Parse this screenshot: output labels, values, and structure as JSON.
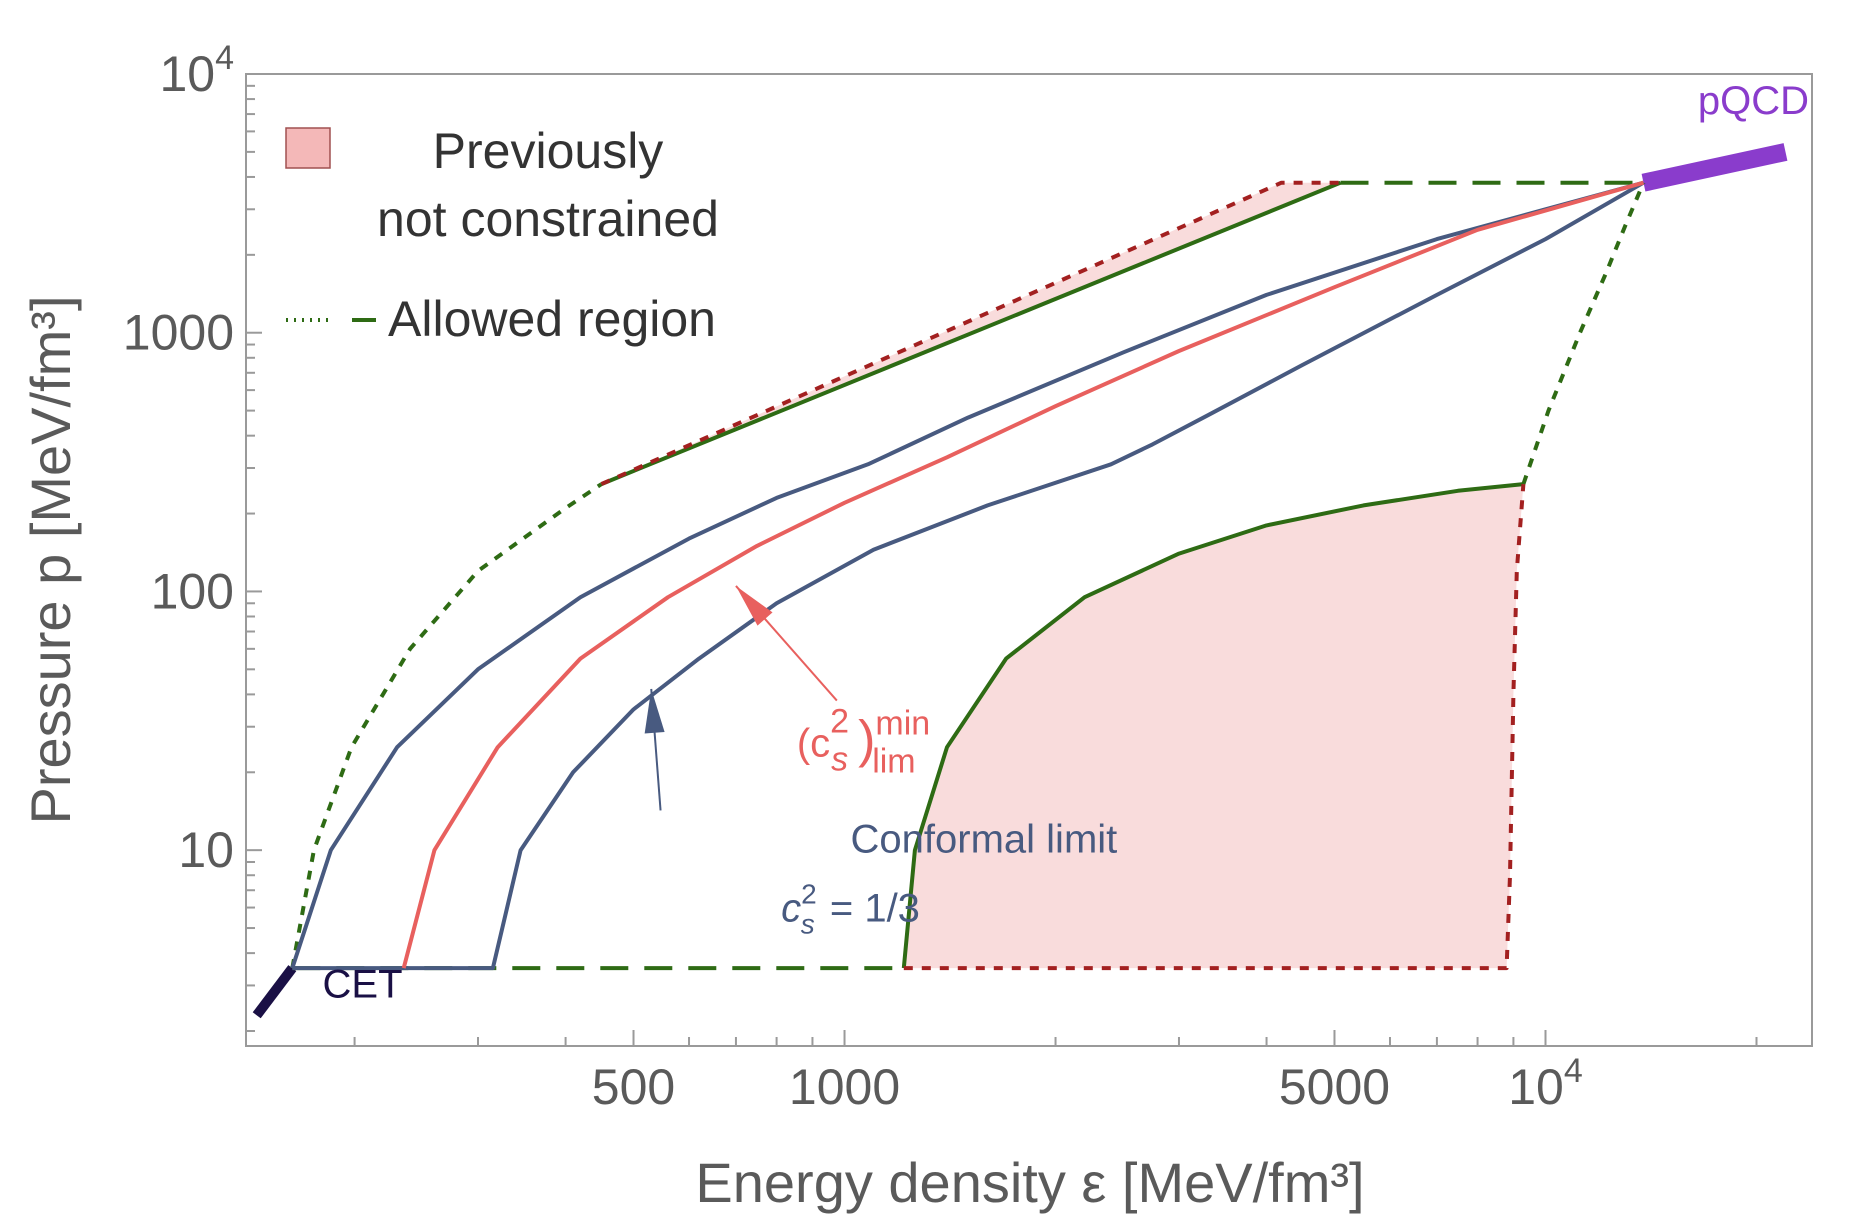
{
  "chart_data": {
    "type": "line",
    "xscale": "log",
    "yscale": "log",
    "xlim": [
      140,
      24000
    ],
    "ylim": [
      1.75,
      10000
    ],
    "xlabel": "Energy density ε [MeV/fm³]",
    "ylabel": "Pressure p [MeV/fm³]",
    "x_tick_labels": [
      {
        "value": 500,
        "label": "500"
      },
      {
        "value": 1000,
        "label": "1000"
      },
      {
        "value": 5000,
        "label": "5000"
      },
      {
        "value": 10000,
        "label": "10",
        "exp": "4"
      }
    ],
    "y_tick_labels": [
      {
        "value": 10,
        "label": "10"
      },
      {
        "value": 100,
        "label": "100"
      },
      {
        "value": 1000,
        "label": "1000"
      },
      {
        "value": 10000,
        "label": "10",
        "exp": "4"
      }
    ],
    "legend": {
      "position": "top-left",
      "items": [
        {
          "label_lines": [
            "Previously",
            "not constrained"
          ],
          "symbol": "shaded-box",
          "color": "#f4b8b8"
        },
        {
          "label_lines": [
            "Allowed region"
          ],
          "symbol": "dash-dot",
          "color": "#2e6b14"
        }
      ]
    },
    "colors": {
      "allowed": "#2e6b14",
      "not_constrained_fill": "#f9dcdc",
      "not_constrained_edge": "#a32020",
      "conformal": "#485a80",
      "cs2min": "#e8605e",
      "cet": "#1a1045",
      "pqcd": "#8a3ccc"
    },
    "series": [
      {
        "name": "CET",
        "style": "band",
        "points": [
          [
            145,
            2.3
          ],
          [
            163,
            3.5
          ]
        ]
      },
      {
        "name": "pQCD",
        "style": "band",
        "points": [
          [
            13800,
            3800
          ],
          [
            22000,
            5000
          ]
        ]
      },
      {
        "style": "baseline-dashed",
        "points": [
          [
            163,
            3.5
          ],
          [
            1215,
            3.5
          ]
        ]
      },
      {
        "style": "upper-edge",
        "points": [
          [
            163,
            3.5
          ],
          [
            175,
            10
          ],
          [
            198,
            25
          ],
          [
            240,
            60
          ],
          [
            300,
            120
          ],
          [
            400,
            210
          ],
          [
            450,
            260
          ]
        ]
      },
      {
        "style": "lower-edge",
        "points": [
          [
            9300,
            260
          ],
          [
            10100,
            500
          ],
          [
            11200,
            1000
          ],
          [
            12200,
            1700
          ],
          [
            13000,
            2600
          ],
          [
            13800,
            3800
          ]
        ]
      },
      {
        "style": "upper-boundary",
        "points": [
          [
            450,
            260
          ],
          [
            5100,
            3800
          ]
        ]
      },
      {
        "style": "top-flat",
        "points": [
          [
            5100,
            3800
          ],
          [
            13800,
            3800
          ]
        ]
      },
      {
        "style": "lower-boundary",
        "points": [
          [
            1215,
            3.5
          ],
          [
            1260,
            10
          ],
          [
            1400,
            25
          ],
          [
            1700,
            55
          ],
          [
            2200,
            95
          ],
          [
            3000,
            140
          ],
          [
            4000,
            180
          ],
          [
            5500,
            215
          ],
          [
            7500,
            245
          ],
          [
            9300,
            260
          ]
        ]
      },
      {
        "style": "not-constrained-upper",
        "points": [
          [
            450,
            260
          ],
          [
            4200,
            3800
          ],
          [
            5100,
            3800
          ]
        ]
      },
      {
        "style": "not-constrained-lower",
        "points": [
          [
            1215,
            3.5
          ],
          [
            8800,
            3.5
          ],
          [
            8900,
            8
          ],
          [
            9000,
            40
          ],
          [
            9100,
            120
          ],
          [
            9300,
            260
          ]
        ]
      },
      {
        "name": "Conformal limit",
        "style": "conformal",
        "points": [
          [
            163,
            3.5
          ],
          [
            185,
            10
          ],
          [
            230,
            25
          ],
          [
            300,
            50
          ],
          [
            420,
            95
          ],
          [
            600,
            160
          ],
          [
            800,
            230
          ],
          [
            1080,
            310
          ],
          [
            1500,
            470
          ],
          [
            2500,
            840
          ],
          [
            4000,
            1400
          ],
          [
            7000,
            2300
          ],
          [
            10000,
            3000
          ],
          [
            13800,
            3800
          ]
        ]
      },
      {
        "style": "conformal",
        "points": [
          [
            163,
            3.5
          ],
          [
            315,
            3.5
          ],
          [
            345,
            10
          ],
          [
            410,
            20
          ],
          [
            500,
            35
          ],
          [
            620,
            55
          ],
          [
            800,
            90
          ],
          [
            1100,
            145
          ],
          [
            1600,
            215
          ],
          [
            2400,
            310
          ],
          [
            2750,
            370
          ],
          [
            3300,
            480
          ],
          [
            4500,
            750
          ],
          [
            7000,
            1400
          ],
          [
            10000,
            2300
          ],
          [
            13800,
            3800
          ]
        ]
      },
      {
        "name": "(c_s^2)_lim^min",
        "style": "cs2min",
        "points": [
          [
            235,
            3.5
          ],
          [
            260,
            10
          ],
          [
            320,
            25
          ],
          [
            420,
            55
          ],
          [
            560,
            95
          ],
          [
            750,
            150
          ],
          [
            1000,
            220
          ],
          [
            1400,
            330
          ],
          [
            2000,
            520
          ],
          [
            3000,
            850
          ],
          [
            5000,
            1500
          ],
          [
            8000,
            2500
          ],
          [
            13800,
            3800
          ]
        ]
      }
    ],
    "annotations": [
      {
        "text": "CET",
        "color": "#1a1045",
        "x": 180,
        "y": 2.7
      },
      {
        "text": "pQCD",
        "color": "#8a3ccc",
        "x": 16500,
        "y": 7000
      },
      {
        "text": "Conformal limit",
        "color": "#485a80",
        "x": 1020,
        "y": 9.8,
        "arrow_to": [
          530,
          42
        ]
      },
      {
        "text": "c",
        "sub": "s",
        "sup": "2",
        "rest": " = 1/3",
        "color": "#485a80",
        "x": 1020,
        "y": 5.3
      },
      {
        "text": "(c",
        "sub": "s",
        "sup": "2",
        "close": ")",
        "sub2": "lim",
        "sup2": "min",
        "color": "#e8605e",
        "x": 855,
        "y": 23,
        "arrow_to": [
          700,
          105
        ]
      }
    ]
  }
}
